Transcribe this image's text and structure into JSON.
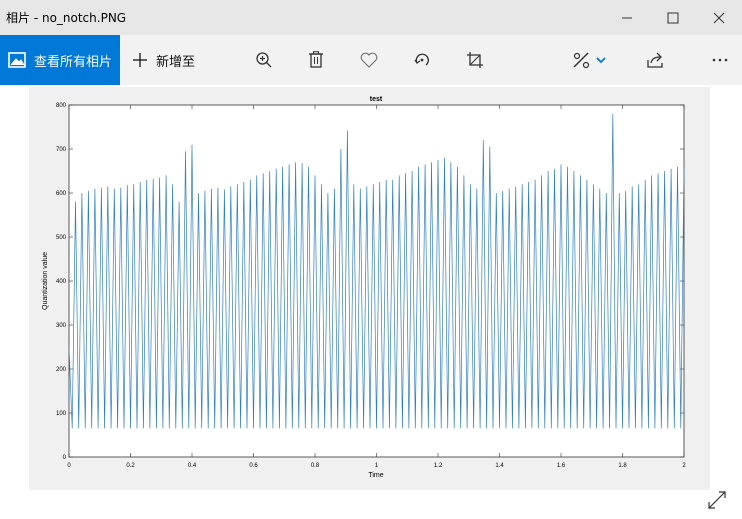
{
  "window": {
    "title": "相片 - no_notch.PNG"
  },
  "toolbar": {
    "view_all_label": "查看所有相片",
    "add_to_label": "新增至"
  },
  "tools": [
    "zoom-in-icon",
    "delete-icon",
    "favorite-icon",
    "rotate-icon",
    "crop-icon",
    "edit-icon",
    "share-icon",
    "more-icon"
  ],
  "chart_data": {
    "type": "line",
    "title": "test",
    "xlabel": "Time",
    "ylabel": "Quantization value",
    "xlim": [
      0,
      2
    ],
    "ylim": [
      0,
      800
    ],
    "x_ticks": [
      "0",
      "0.2",
      "0.4",
      "0.6",
      "0.8",
      "1",
      "1.2",
      "1.4",
      "1.6",
      "1.8",
      "2"
    ],
    "y_ticks": [
      "0",
      "100",
      "200",
      "300",
      "400",
      "500",
      "600",
      "700",
      "800"
    ],
    "series": [
      {
        "color": "#2d7fc1",
        "oscillation_min": 65,
        "cycle_peaks": [
          250,
          580,
          600,
          605,
          610,
          612,
          615,
          610,
          612,
          618,
          620,
          625,
          630,
          632,
          635,
          640,
          620,
          580,
          695,
          710,
          600,
          605,
          610,
          612,
          608,
          615,
          620,
          625,
          630,
          640,
          645,
          650,
          655,
          660,
          665,
          670,
          668,
          660,
          640,
          620,
          600,
          610,
          700,
          742,
          620,
          610,
          615,
          620,
          625,
          630,
          630,
          640,
          645,
          650,
          660,
          665,
          670,
          675,
          680,
          670,
          660,
          640,
          620,
          610,
          720,
          705,
          600,
          605,
          610,
          615,
          620,
          625,
          630,
          640,
          650,
          655,
          665,
          660,
          650,
          640,
          630,
          620,
          610,
          600,
          780,
          600,
          605,
          615,
          620,
          630,
          640,
          645,
          650,
          655,
          660
        ]
      }
    ]
  }
}
